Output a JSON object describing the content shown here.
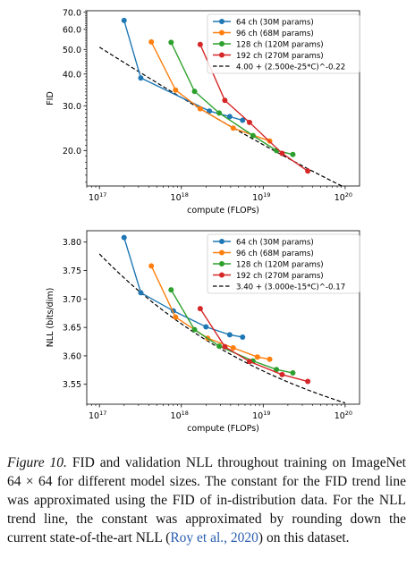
{
  "colors": {
    "blue": "#1f77b4",
    "orange": "#ff7f0e",
    "green": "#2ca02c",
    "red": "#d62728",
    "trend": "#000000",
    "citation": "#2a5db0"
  },
  "chart_data": [
    {
      "type": "line",
      "xscale": "log",
      "yscale": "log",
      "xlabel": "compute (FLOPs)",
      "ylabel": "FID",
      "xlim": [
        7e+16,
        1.5e+20
      ],
      "ylim": [
        14.5,
        71
      ],
      "xticks": [
        {
          "value": 1e+17,
          "base": "10",
          "exp": "17"
        },
        {
          "value": 1e+18,
          "base": "10",
          "exp": "18"
        },
        {
          "value": 1e+19,
          "base": "10",
          "exp": "19"
        },
        {
          "value": 1e+20,
          "base": "10",
          "exp": "20"
        }
      ],
      "yticks": [
        {
          "value": 20,
          "label": "20.0"
        },
        {
          "value": 30,
          "label": "30.0"
        },
        {
          "value": 40,
          "label": "40.0"
        },
        {
          "value": 50,
          "label": "50.0"
        },
        {
          "value": 60,
          "label": "60.0"
        },
        {
          "value": 70,
          "label": "70.0"
        }
      ],
      "legend": "top-right",
      "series": [
        {
          "name": "64 ch (30M params)",
          "color": "#1f77b4",
          "x": [
            2e+17,
            3.2e+17,
            2.2e+18,
            3.9e+18,
            5.6e+18
          ],
          "y": [
            65,
            38.6,
            28.6,
            27.2,
            26.3
          ]
        },
        {
          "name": "96 ch (68M params)",
          "color": "#ff7f0e",
          "x": [
            4.3e+17,
            8.5e+17,
            1.7e+18,
            4.3e+18,
            1.2e+19
          ],
          "y": [
            53.5,
            34.6,
            29.2,
            24.5,
            21.8
          ]
        },
        {
          "name": "128 ch (120M params)",
          "color": "#2ca02c",
          "x": [
            7.5e+17,
            1.45e+18,
            2.9e+18,
            7.5e+18,
            1.45e+19,
            2.3e+19
          ],
          "y": [
            53.3,
            34.2,
            28.1,
            22.9,
            20.0,
            19.3
          ]
        },
        {
          "name": "192 ch (270M params)",
          "color": "#d62728",
          "x": [
            1.7e+18,
            3.4e+18,
            6.8e+18,
            1.7e+19,
            3.5e+19
          ],
          "y": [
            52.3,
            31.5,
            25.8,
            19.5,
            16.6
          ]
        }
      ],
      "trend": {
        "label": "4.00 + (2.500e-25*C)^-0.22",
        "a": 4.0,
        "k": 2.5e-25,
        "p": -0.22
      }
    },
    {
      "type": "line",
      "xscale": "log",
      "yscale": "linear",
      "xlabel": "compute (FLOPs)",
      "ylabel": "NLL (bits/dim)",
      "xlim": [
        7e+16,
        1.5e+20
      ],
      "ylim": [
        3.515,
        3.82
      ],
      "xticks": [
        {
          "value": 1e+17,
          "base": "10",
          "exp": "17"
        },
        {
          "value": 1e+18,
          "base": "10",
          "exp": "18"
        },
        {
          "value": 1e+19,
          "base": "10",
          "exp": "19"
        },
        {
          "value": 1e+20,
          "base": "10",
          "exp": "20"
        }
      ],
      "yticks": [
        {
          "value": 3.55,
          "label": "3.55"
        },
        {
          "value": 3.6,
          "label": "3.60"
        },
        {
          "value": 3.65,
          "label": "3.65"
        },
        {
          "value": 3.7,
          "label": "3.70"
        },
        {
          "value": 3.75,
          "label": "3.75"
        },
        {
          "value": 3.8,
          "label": "3.80"
        }
      ],
      "legend": "top-right",
      "series": [
        {
          "name": "64 ch (30M params)",
          "color": "#1f77b4",
          "x": [
            2e+17,
            3.2e+17,
            8e+17,
            2e+18,
            3.9e+18,
            5.6e+18
          ],
          "y": [
            3.808,
            3.711,
            3.679,
            3.651,
            3.637,
            3.633
          ]
        },
        {
          "name": "96 ch (68M params)",
          "color": "#ff7f0e",
          "x": [
            4.3e+17,
            8.5e+17,
            2.1e+18,
            4.3e+18,
            8.5e+18,
            1.2e+19
          ],
          "y": [
            3.758,
            3.668,
            3.631,
            3.614,
            3.598,
            3.594
          ]
        },
        {
          "name": "128 ch (120M params)",
          "color": "#2ca02c",
          "x": [
            7.5e+17,
            1.45e+18,
            2.9e+18,
            7.5e+18,
            1.45e+19,
            2.3e+19
          ],
          "y": [
            3.716,
            3.646,
            3.617,
            3.591,
            3.576,
            3.57
          ]
        },
        {
          "name": "192 ch (270M params)",
          "color": "#d62728",
          "x": [
            1.7e+18,
            3.4e+18,
            6.8e+18,
            1.7e+19,
            3.5e+19
          ],
          "y": [
            3.683,
            3.616,
            3.59,
            3.567,
            3.555
          ]
        }
      ],
      "trend": {
        "label": "3.40 + (3.000e-15*C)^-0.17",
        "a": 3.4,
        "k": 3e-15,
        "p": -0.17
      }
    }
  ],
  "caption": {
    "figure_label": "Figure 10.",
    "text_before_math": " FID and validation NLL throughout training on ImageNet ",
    "math": "64 × 64",
    "text_before_cite": " for different model sizes. The constant for the FID trend line was approximated using the FID of in-distribution data. For the NLL trend line, the constant was approximated by rounding down the current state-of-the-art NLL (",
    "citation": "Roy et al., 2020",
    "text_after_cite": ") on this dataset."
  }
}
